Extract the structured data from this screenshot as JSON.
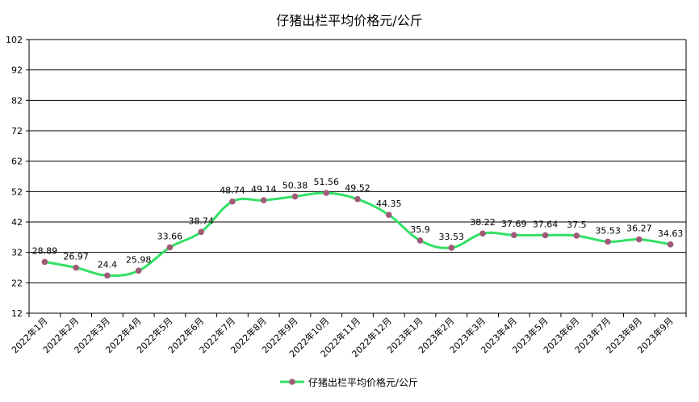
{
  "chart_data": {
    "type": "line",
    "title": "仔猪出栏平均价格元/公斤",
    "xlabel": "",
    "ylabel": "",
    "categories": [
      "2022年1月",
      "2022年2月",
      "2022年3月",
      "2022年4月",
      "2022年5月",
      "2022年6月",
      "2022年7月",
      "2022年8月",
      "2022年9月",
      "2022年10月",
      "2022年11月",
      "2022年12月",
      "2023年1月",
      "2023年2月",
      "2023年3月",
      "2023年4月",
      "2023年5月",
      "2023年6月",
      "2023年7月",
      "2023年8月",
      "2023年9月"
    ],
    "series": [
      {
        "name": "仔猪出栏平均价格元/公斤",
        "values": [
          28.89,
          26.97,
          24.4,
          25.98,
          33.66,
          38.74,
          48.74,
          49.14,
          50.38,
          51.56,
          49.52,
          44.35,
          35.9,
          33.53,
          38.22,
          37.69,
          37.64,
          37.5,
          35.53,
          36.27,
          34.63
        ],
        "line_color": "#33e066",
        "marker_color": "#a05a78"
      }
    ],
    "ylim": [
      12,
      102
    ],
    "yticks": [
      12,
      22,
      32,
      42,
      52,
      62,
      72,
      82,
      92,
      102
    ],
    "grid": true,
    "legend_position": "bottom"
  }
}
